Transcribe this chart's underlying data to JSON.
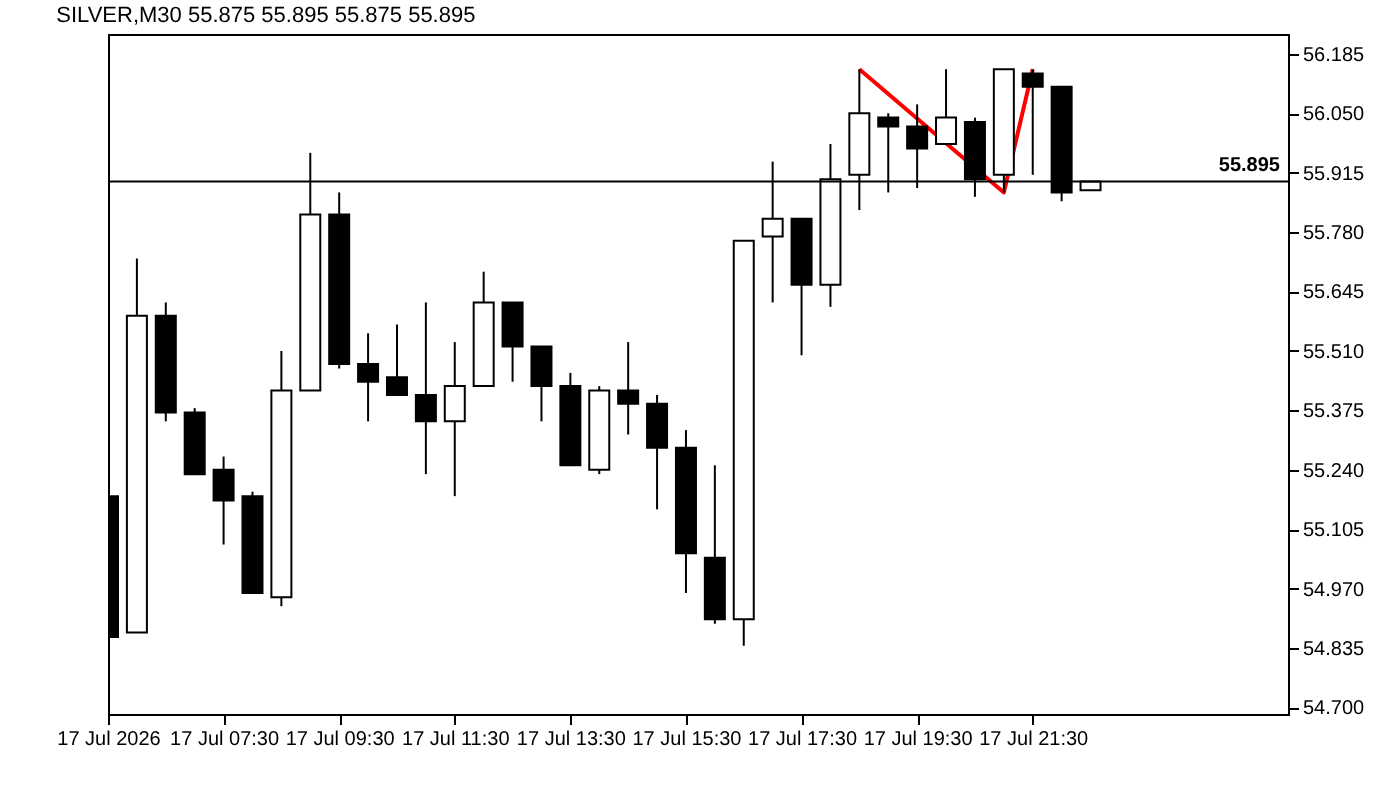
{
  "chart_data": {
    "type": "candlestick",
    "title": "SILVER,M30  55.875 55.895 55.875 55.895",
    "x": [
      "2026-07-17T05:30",
      "2026-07-17T06:00",
      "2026-07-17T06:30",
      "2026-07-17T07:00",
      "2026-07-17T07:30",
      "2026-07-17T08:00",
      "2026-07-17T08:30",
      "2026-07-17T09:00",
      "2026-07-17T09:30",
      "2026-07-17T10:00",
      "2026-07-17T10:30",
      "2026-07-17T11:00",
      "2026-07-17T11:30",
      "2026-07-17T12:00",
      "2026-07-17T12:30",
      "2026-07-17T13:00",
      "2026-07-17T13:30",
      "2026-07-17T14:00",
      "2026-07-17T14:30",
      "2026-07-17T15:00",
      "2026-07-17T15:30",
      "2026-07-17T16:00",
      "2026-07-17T16:30",
      "2026-07-17T17:00",
      "2026-07-17T17:30",
      "2026-07-17T18:00",
      "2026-07-17T18:30",
      "2026-07-17T19:00",
      "2026-07-17T19:30",
      "2026-07-17T20:00",
      "2026-07-17T20:30",
      "2026-07-17T21:00",
      "2026-07-17T21:30",
      "2026-07-17T22:00",
      "2026-07-17T22:30"
    ],
    "ohlc": [
      [
        55.18,
        55.18,
        54.86,
        54.86
      ],
      [
        54.87,
        55.72,
        54.87,
        55.59
      ],
      [
        55.59,
        55.62,
        55.35,
        55.37
      ],
      [
        55.37,
        55.38,
        55.23,
        55.23
      ],
      [
        55.24,
        55.27,
        55.07,
        55.17
      ],
      [
        55.18,
        55.19,
        54.96,
        54.96
      ],
      [
        54.95,
        55.51,
        54.93,
        55.42
      ],
      [
        55.42,
        55.96,
        55.42,
        55.82
      ],
      [
        55.82,
        55.87,
        55.47,
        55.48
      ],
      [
        55.48,
        55.55,
        55.35,
        55.44
      ],
      [
        55.45,
        55.57,
        55.41,
        55.41
      ],
      [
        55.41,
        55.62,
        55.23,
        55.35
      ],
      [
        55.35,
        55.53,
        55.18,
        55.43
      ],
      [
        55.43,
        55.69,
        55.43,
        55.62
      ],
      [
        55.62,
        55.62,
        55.44,
        55.52
      ],
      [
        55.52,
        55.52,
        55.35,
        55.43
      ],
      [
        55.43,
        55.46,
        55.25,
        55.25
      ],
      [
        55.24,
        55.43,
        55.23,
        55.42
      ],
      [
        55.42,
        55.53,
        55.32,
        55.39
      ],
      [
        55.39,
        55.41,
        55.15,
        55.29
      ],
      [
        55.29,
        55.33,
        54.96,
        55.05
      ],
      [
        55.04,
        55.25,
        54.89,
        54.9
      ],
      [
        54.9,
        55.76,
        54.84,
        55.76
      ],
      [
        55.77,
        55.94,
        55.62,
        55.81
      ],
      [
        55.81,
        55.81,
        55.5,
        55.66
      ],
      [
        55.66,
        55.98,
        55.61,
        55.9
      ],
      [
        55.91,
        56.15,
        55.83,
        56.05
      ],
      [
        56.04,
        56.05,
        55.87,
        56.02
      ],
      [
        56.02,
        56.07,
        55.88,
        55.97
      ],
      [
        55.98,
        56.15,
        55.98,
        56.04
      ],
      [
        56.03,
        56.04,
        55.86,
        55.9
      ],
      [
        55.91,
        56.15,
        55.87,
        56.15
      ],
      [
        56.14,
        56.15,
        55.91,
        56.11
      ],
      [
        56.11,
        56.11,
        55.85,
        55.87
      ],
      [
        55.875,
        55.895,
        55.875,
        55.895
      ]
    ],
    "series": [
      {
        "type": "line",
        "color": "#ff0000",
        "x": [
          "2026-07-17T18:30",
          "2026-07-17T21:00",
          "2026-07-17T21:30"
        ],
        "values": [
          56.15,
          55.87,
          56.15
        ]
      }
    ],
    "xlim": [
      "2026-07-17T05:30",
      "2026-07-18T01:55"
    ],
    "xticks": [
      {
        "value": "2026-07-17T05:30",
        "label": "17 Jul 2026"
      },
      {
        "value": "2026-07-17T07:30",
        "label": "17 Jul 07:30"
      },
      {
        "value": "2026-07-17T09:30",
        "label": "17 Jul 09:30"
      },
      {
        "value": "2026-07-17T11:30",
        "label": "17 Jul 11:30"
      },
      {
        "value": "2026-07-17T13:30",
        "label": "17 Jul 13:30"
      },
      {
        "value": "2026-07-17T15:30",
        "label": "17 Jul 15:30"
      },
      {
        "value": "2026-07-17T17:30",
        "label": "17 Jul 17:30"
      },
      {
        "value": "2026-07-17T19:30",
        "label": "17 Jul 19:30"
      },
      {
        "value": "2026-07-17T21:30",
        "label": "17 Jul 21:30"
      }
    ],
    "ylim": [
      54.685,
      56.23
    ],
    "yticks": [
      {
        "value": 54.7,
        "label": "54.700"
      },
      {
        "value": 54.835,
        "label": "54.835"
      },
      {
        "value": 54.97,
        "label": "54.970"
      },
      {
        "value": 55.105,
        "label": "55.105"
      },
      {
        "value": 55.24,
        "label": "55.240"
      },
      {
        "value": 55.375,
        "label": "55.375"
      },
      {
        "value": 55.51,
        "label": "55.510"
      },
      {
        "value": 55.645,
        "label": "55.645"
      },
      {
        "value": 55.78,
        "label": "55.780"
      },
      {
        "value": 55.915,
        "label": "55.915"
      },
      {
        "value": 56.05,
        "label": "56.050"
      },
      {
        "value": 56.185,
        "label": "56.185"
      }
    ],
    "ref_lines": [
      {
        "axis": "y",
        "value": 55.895,
        "label": "55.895",
        "color": "#000000"
      }
    ],
    "grid": false,
    "legend": false
  }
}
